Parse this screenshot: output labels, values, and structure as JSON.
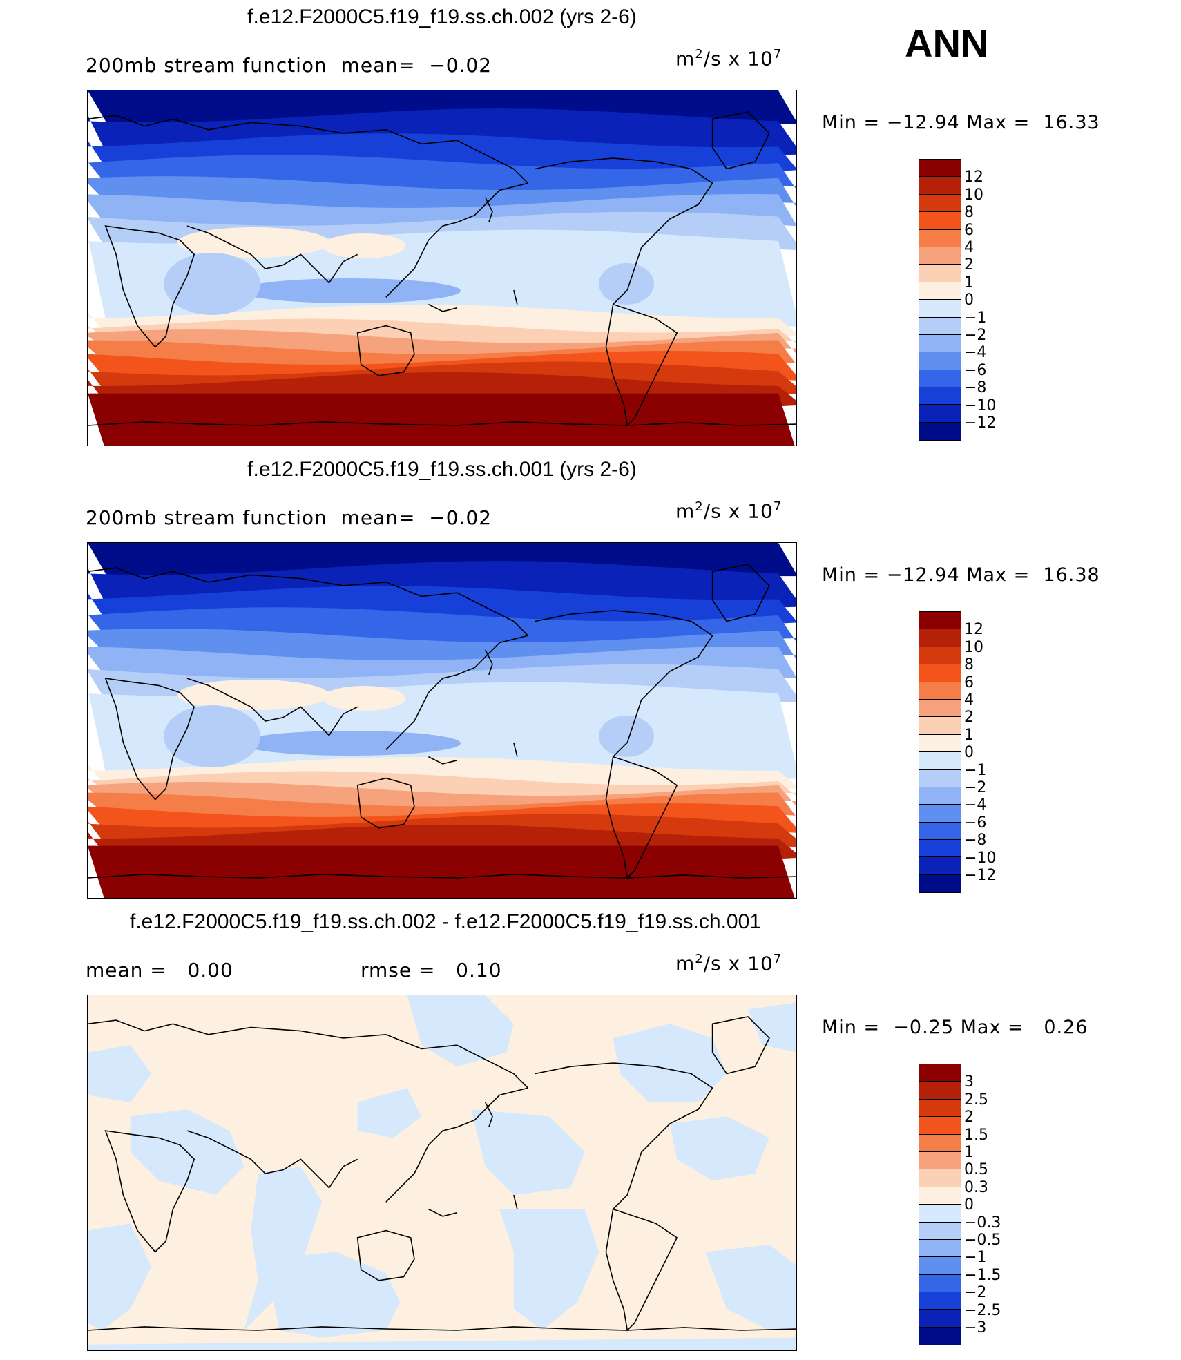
{
  "season": "ANN",
  "panels": [
    {
      "title": "f.e12.F2000C5.f19_f19.ss.ch.002 (yrs 2-6)",
      "stats_left": "200mb stream function  mean=  −0.02",
      "stats_mid": "",
      "units_text": "m",
      "units_exp": "2",
      "units_mid": "/s x 10",
      "units_exp2": "7",
      "min_max": "Min = −12.94 Max =  16.33",
      "colorbar": {
        "labels": [
          "12",
          "10",
          "8",
          "6",
          "4",
          "2",
          "1",
          "0",
          "−1",
          "−2",
          "−4",
          "−6",
          "−8",
          "−10",
          "−12"
        ],
        "colors": [
          "#8b0000",
          "#b52008",
          "#d43a0e",
          "#f2541c",
          "#f47d48",
          "#f6a27c",
          "#fcd0b4",
          "#fdf0e0",
          "#d6e8fb",
          "#b5cef7",
          "#8fb3f4",
          "#5f90ef",
          "#3566e8",
          "#1640d8",
          "#0a22b8",
          "#000d8a"
        ]
      },
      "map_type": "full"
    },
    {
      "title": "f.e12.F2000C5.f19_f19.ss.ch.001 (yrs 2-6)",
      "stats_left": "200mb stream function  mean=  −0.02",
      "stats_mid": "",
      "units_text": "m",
      "units_exp": "2",
      "units_mid": "/s x 10",
      "units_exp2": "7",
      "min_max": "Min = −12.94 Max =  16.38",
      "colorbar": {
        "labels": [
          "12",
          "10",
          "8",
          "6",
          "4",
          "2",
          "1",
          "0",
          "−1",
          "−2",
          "−4",
          "−6",
          "−8",
          "−10",
          "−12"
        ],
        "colors": [
          "#8b0000",
          "#b52008",
          "#d43a0e",
          "#f2541c",
          "#f47d48",
          "#f6a27c",
          "#fcd0b4",
          "#fdf0e0",
          "#d6e8fb",
          "#b5cef7",
          "#8fb3f4",
          "#5f90ef",
          "#3566e8",
          "#1640d8",
          "#0a22b8",
          "#000d8a"
        ]
      },
      "map_type": "full"
    },
    {
      "title": "f.e12.F2000C5.f19_f19.ss.ch.002 - f.e12.F2000C5.f19_f19.ss.ch.001",
      "stats_left": "mean =   0.00",
      "stats_mid": "rmse =   0.10",
      "units_text": "m",
      "units_exp": "2",
      "units_mid": "/s x 10",
      "units_exp2": "7",
      "min_max": "Min =  −0.25 Max =   0.26",
      "colorbar": {
        "labels": [
          "3",
          "2.5",
          "2",
          "1.5",
          "1",
          "0.5",
          "0.3",
          "0",
          "−0.3",
          "−0.5",
          "−1",
          "−1.5",
          "−2",
          "−2.5",
          "−3"
        ],
        "colors": [
          "#8b0000",
          "#b52008",
          "#d43a0e",
          "#f2541c",
          "#f47d48",
          "#f6a27c",
          "#fcd0b4",
          "#fdf0e0",
          "#d6e8fb",
          "#b5cef7",
          "#8fb3f4",
          "#5f90ef",
          "#3566e8",
          "#1640d8",
          "#0a22b8",
          "#000d8a"
        ]
      },
      "map_type": "diff"
    }
  ]
}
